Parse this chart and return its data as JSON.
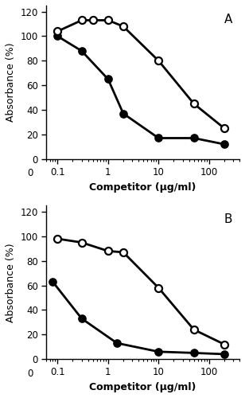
{
  "panel_A": {
    "filled": {
      "x": [
        0.1,
        0.3,
        1.0,
        2.0,
        10.0,
        50.0,
        200.0
      ],
      "y": [
        100,
        88,
        65,
        37,
        17,
        17,
        12
      ]
    },
    "open": {
      "x": [
        0.1,
        0.3,
        0.5,
        1.0,
        2.0,
        10.0,
        50.0,
        200.0
      ],
      "y": [
        104,
        113,
        113,
        113,
        108,
        80,
        45,
        25
      ]
    },
    "label": "A",
    "ylim": [
      0,
      125
    ],
    "yticks": [
      0,
      20,
      40,
      60,
      80,
      100,
      120
    ]
  },
  "panel_B": {
    "filled": {
      "x": [
        0.08,
        0.3,
        1.5,
        10.0,
        50.0,
        200.0
      ],
      "y": [
        63,
        33,
        13,
        6,
        5,
        4
      ]
    },
    "open": {
      "x": [
        0.1,
        0.3,
        1.0,
        2.0,
        10.0,
        50.0,
        200.0
      ],
      "y": [
        98,
        95,
        88,
        87,
        58,
        24,
        12
      ]
    },
    "label": "B",
    "ylim": [
      0,
      125
    ],
    "yticks": [
      0,
      20,
      40,
      60,
      80,
      100,
      120
    ]
  },
  "xlabel": "Competitor (μg/ml)",
  "ylabel": "Absorbance (%)",
  "xlim_log": [
    0.06,
    400
  ],
  "xticks": [
    0.1,
    1,
    10,
    100
  ],
  "xticklabels": [
    "0.1",
    "1",
    "10",
    "100"
  ],
  "line_color": "#000000",
  "linewidth": 2.0,
  "markersize": 6.5
}
